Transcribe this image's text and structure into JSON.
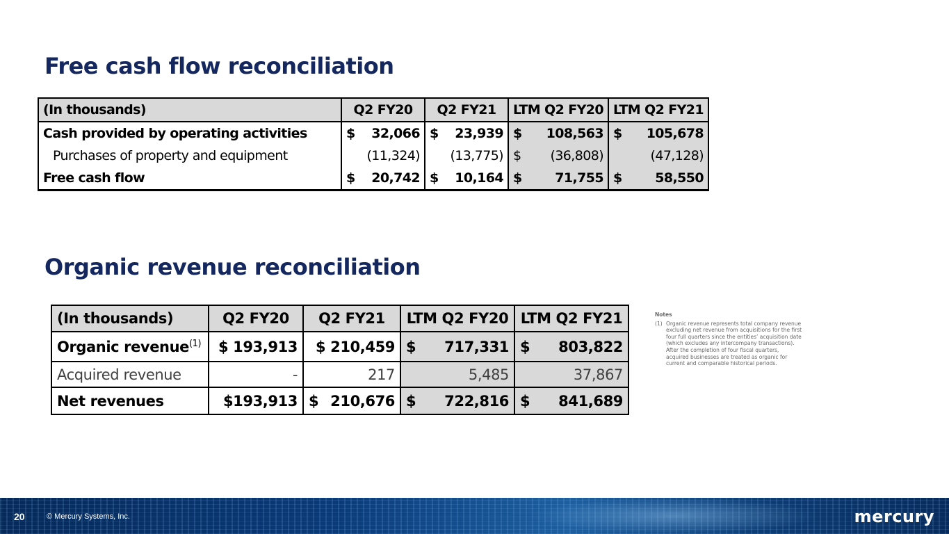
{
  "fcf": {
    "title": "Free cash flow reconciliation",
    "headers": [
      "(In thousands)",
      "Q2 FY20",
      "Q2 FY21",
      "LTM Q2 FY20",
      "LTM Q2 FY21"
    ],
    "rows": [
      {
        "label": "Cash provided by operating activities",
        "cells": [
          {
            "sym": "$",
            "val": "32,066"
          },
          {
            "sym": "$",
            "val": "23,939"
          },
          {
            "sym": "$",
            "val": "108,563"
          },
          {
            "sym": "$",
            "val": "105,678"
          }
        ]
      },
      {
        "label": "Purchases of property and equipment",
        "cells": [
          {
            "sym": "",
            "val": "(11,324)"
          },
          {
            "sym": "",
            "val": "(13,775)"
          },
          {
            "sym": "$",
            "val": "(36,808)"
          },
          {
            "sym": "",
            "val": "(47,128)"
          }
        ]
      },
      {
        "label": "Free cash flow",
        "cells": [
          {
            "sym": "$",
            "val": "20,742"
          },
          {
            "sym": "$",
            "val": "10,164"
          },
          {
            "sym": "$",
            "val": "71,755"
          },
          {
            "sym": "$",
            "val": "58,550"
          }
        ]
      }
    ]
  },
  "organic": {
    "title": "Organic revenue reconciliation",
    "headers": [
      "(In thousands)",
      "Q2 FY20",
      "Q2 FY21",
      "LTM Q2 FY20",
      "LTM Q2 FY21"
    ],
    "rows": [
      {
        "label": "Organic revenue",
        "sup": "(1)",
        "cells": [
          {
            "sym": "",
            "val": "$ 193,913"
          },
          {
            "sym": "",
            "val": "$ 210,459"
          },
          {
            "sym": "$",
            "val": "717,331"
          },
          {
            "sym": "$",
            "val": "803,822"
          }
        ]
      },
      {
        "label": "Acquired revenue",
        "cells": [
          {
            "sym": "",
            "val": "-"
          },
          {
            "sym": "",
            "val": "217"
          },
          {
            "sym": "",
            "val": "5,485"
          },
          {
            "sym": "",
            "val": "37,867"
          }
        ]
      },
      {
        "label": "Net revenues",
        "cells": [
          {
            "sym": "",
            "val": "$193,913"
          },
          {
            "sym": "$",
            "val": "210,676"
          },
          {
            "sym": "$",
            "val": "722,816"
          },
          {
            "sym": "$",
            "val": "841,689"
          }
        ]
      }
    ]
  },
  "notes": {
    "heading": "Notes",
    "items": [
      {
        "num": "(1)",
        "text": "Organic revenue represents total company revenue excluding net revenue from acquisitions for the first four full quarters since the entities’ acquisition date (which excludes any intercompany transactions). After the completion of four fiscal quarters, acquired businesses are treated as organic for current and comparable historical periods."
      }
    ]
  },
  "footer": {
    "page": "20",
    "copyright": "© Mercury Systems, Inc.",
    "logo": "mercury"
  }
}
